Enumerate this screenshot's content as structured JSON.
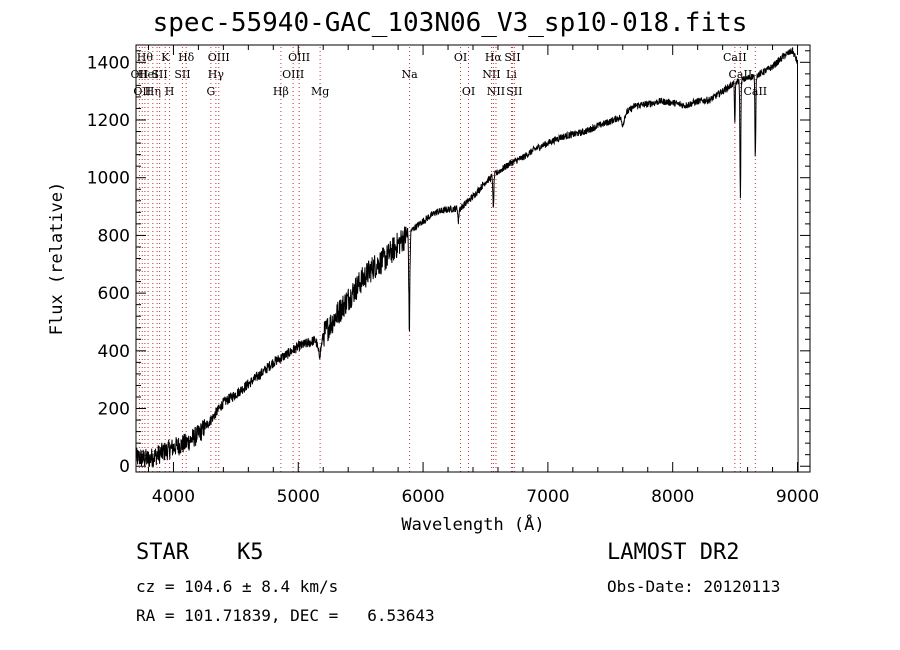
{
  "title": "spec-55940-GAC_103N06_V3_sp10-018.fits",
  "info": {
    "class_label": "STAR",
    "subclass": "K5",
    "survey": "LAMOST DR2",
    "cz": "cz = 104.6 ± 8.4 km/s",
    "obs_date": "Obs-Date: 20120113",
    "radec": "RA = 101.71839, DEC =   6.53643"
  },
  "chart_data": {
    "type": "line",
    "xlabel": "Wavelength (Å)",
    "ylabel": "Flux (relative)",
    "xlim": [
      3700,
      9100
    ],
    "ylim": [
      -20,
      1460
    ],
    "xticks": [
      4000,
      5000,
      6000,
      7000,
      8000,
      9000
    ],
    "yticks": [
      0,
      200,
      400,
      600,
      800,
      1000,
      1200,
      1400
    ],
    "grid": false,
    "line_color": "#000000",
    "marker_color": "#c83232",
    "continuum": [
      [
        3700,
        30
      ],
      [
        3800,
        25
      ],
      [
        3900,
        45
      ],
      [
        4000,
        65
      ],
      [
        4100,
        80
      ],
      [
        4200,
        110
      ],
      [
        4300,
        160
      ],
      [
        4400,
        220
      ],
      [
        4500,
        250
      ],
      [
        4600,
        285
      ],
      [
        4700,
        320
      ],
      [
        4800,
        360
      ],
      [
        4900,
        385
      ],
      [
        5000,
        415
      ],
      [
        5100,
        430
      ],
      [
        5200,
        455
      ],
      [
        5300,
        520
      ],
      [
        5400,
        580
      ],
      [
        5500,
        640
      ],
      [
        5600,
        690
      ],
      [
        5700,
        720
      ],
      [
        5800,
        770
      ],
      [
        5900,
        815
      ],
      [
        6000,
        850
      ],
      [
        6100,
        880
      ],
      [
        6200,
        890
      ],
      [
        6300,
        895
      ],
      [
        6400,
        935
      ],
      [
        6500,
        985
      ],
      [
        6600,
        1020
      ],
      [
        6700,
        1050
      ],
      [
        6800,
        1070
      ],
      [
        6900,
        1100
      ],
      [
        7000,
        1120
      ],
      [
        7100,
        1140
      ],
      [
        7200,
        1150
      ],
      [
        7300,
        1160
      ],
      [
        7400,
        1180
      ],
      [
        7500,
        1195
      ],
      [
        7600,
        1215
      ],
      [
        7700,
        1250
      ],
      [
        7800,
        1255
      ],
      [
        7900,
        1265
      ],
      [
        8000,
        1260
      ],
      [
        8100,
        1250
      ],
      [
        8200,
        1265
      ],
      [
        8300,
        1270
      ],
      [
        8400,
        1300
      ],
      [
        8500,
        1330
      ],
      [
        8600,
        1345
      ],
      [
        8700,
        1360
      ],
      [
        8800,
        1385
      ],
      [
        8900,
        1425
      ],
      [
        8960,
        1440
      ],
      [
        9000,
        1400
      ]
    ],
    "absorption_dips": [
      {
        "x": 5890,
        "depth": 330,
        "width": 6
      },
      {
        "x": 6563,
        "depth": 120,
        "width": 5
      },
      {
        "x": 6283,
        "depth": 50,
        "width": 5
      },
      {
        "x": 5170,
        "depth": 60,
        "width": 20
      },
      {
        "x": 8498,
        "depth": 150,
        "width": 4
      },
      {
        "x": 8542,
        "depth": 400,
        "width": 5
      },
      {
        "x": 8662,
        "depth": 280,
        "width": 5
      },
      {
        "x": 7600,
        "depth": 30,
        "width": 15
      }
    ],
    "final_drop": [
      9005,
      -20
    ],
    "noise_segments": [
      {
        "from": 3700,
        "to": 4250,
        "amplitude": 35
      },
      {
        "from": 4250,
        "to": 5200,
        "amplitude": 18
      },
      {
        "from": 5200,
        "to": 5900,
        "amplitude": 45
      },
      {
        "from": 5900,
        "to": 9000,
        "amplitude": 12
      }
    ],
    "line_markers": [
      {
        "x": 3727,
        "label": "OII",
        "row": 1
      },
      {
        "x": 3750,
        "label": "OII",
        "row": 2
      },
      {
        "x": 3771,
        "label": "Hθ",
        "row": 0
      },
      {
        "x": 3797,
        "label": "HeI",
        "row": 1
      },
      {
        "x": 3835,
        "label": "Hη",
        "row": 2
      },
      {
        "x": 3869,
        "label": "",
        "row": -1
      },
      {
        "x": 3889,
        "label": "SII",
        "row": 1
      },
      {
        "x": 3934,
        "label": "K",
        "row": 0
      },
      {
        "x": 3969,
        "label": "H",
        "row": 2
      },
      {
        "x": 4072,
        "label": "SII",
        "row": 1
      },
      {
        "x": 4102,
        "label": "Hδ",
        "row": 0
      },
      {
        "x": 4300,
        "label": "G",
        "row": 2
      },
      {
        "x": 4340,
        "label": "Hγ",
        "row": 1
      },
      {
        "x": 4363,
        "label": "OIII",
        "row": 0
      },
      {
        "x": 4861,
        "label": "Hβ",
        "row": 2
      },
      {
        "x": 4959,
        "label": "OIII",
        "row": 1
      },
      {
        "x": 5007,
        "label": "OIII",
        "row": 0
      },
      {
        "x": 5175,
        "label": "Mg",
        "row": 2
      },
      {
        "x": 5892,
        "label": "Na",
        "row": 1
      },
      {
        "x": 6300,
        "label": "OI",
        "row": 0
      },
      {
        "x": 6364,
        "label": "OI",
        "row": 2
      },
      {
        "x": 6548,
        "label": "NII",
        "row": 1
      },
      {
        "x": 6563,
        "label": "Hα",
        "row": 0
      },
      {
        "x": 6584,
        "label": "NII",
        "row": 2
      },
      {
        "x": 6708,
        "label": "Li",
        "row": 1
      },
      {
        "x": 6716,
        "label": "SII",
        "row": 0
      },
      {
        "x": 6731,
        "label": "SII",
        "row": 2
      },
      {
        "x": 8498,
        "label": "CaII",
        "row": 0
      },
      {
        "x": 8542,
        "label": "CaII",
        "row": 1
      },
      {
        "x": 8662,
        "label": "CaII",
        "row": 2
      }
    ]
  }
}
